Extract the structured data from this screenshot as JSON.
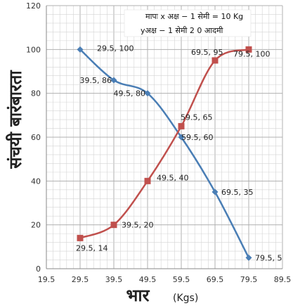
{
  "chart_data": {
    "type": "line",
    "xlabel": "भार",
    "xunit": "(Kgs)",
    "ylabel": "संचयी बारंबारता",
    "scale_note": [
      "मापः x अक्ष  − 1  सेमी = 10 Kg",
      "yअक्ष  − 1  सेमी  2 0  आदमी"
    ],
    "xlim": [
      19.5,
      89.5
    ],
    "ylim": [
      0,
      120
    ],
    "xticks": [
      "19.5",
      "29.5",
      "39.5",
      "49.5",
      "59.5",
      "69.5",
      "79.5",
      "89.5"
    ],
    "yticks": [
      "0",
      "20",
      "40",
      "60",
      "80",
      "100",
      "120"
    ],
    "grid": true,
    "series": [
      {
        "color": "#4a7eb5",
        "marker": "diamond",
        "x": [
          29.5,
          39.5,
          49.5,
          59.5,
          69.5,
          79.5
        ],
        "y": [
          100,
          86,
          80,
          60,
          35,
          5
        ],
        "labels": [
          "29.5, 100",
          "39.5, 86",
          "49.5, 80",
          "59.5, 60",
          "69.5, 35",
          "79.5, 5"
        ]
      },
      {
        "color": "#c0504d",
        "marker": "square",
        "x": [
          29.5,
          39.5,
          49.5,
          59.5,
          69.5,
          79.5
        ],
        "y": [
          14,
          20,
          40,
          65,
          95,
          100
        ],
        "labels": [
          "29.5, 14",
          "39.5, 20",
          "49.5, 40",
          "59.5, 65",
          "69.5, 95",
          "79.5, 100"
        ]
      }
    ]
  }
}
